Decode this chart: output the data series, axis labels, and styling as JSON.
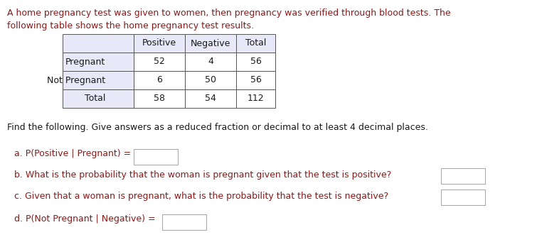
{
  "description_line1": "A home pregnancy test was given to women, then pregnancy was verified through blood tests. The",
  "description_line2": "following table shows the home pregnancy test results.",
  "table_headers": [
    "",
    "Positive",
    "Negative",
    "Total"
  ],
  "table_rows": [
    [
      "Pregnant",
      "52",
      "4",
      "56"
    ],
    [
      "Not Pregnant",
      "6",
      "50",
      "56"
    ],
    [
      "Total",
      "58",
      "54",
      "112"
    ]
  ],
  "find_text": "Find the following. Give answers as a reduced fraction or decimal to at least 4 decimal places.",
  "question_a": "a. P(Positive | Pregnant) =",
  "question_b": "b. What is the probability that the woman is pregnant given that the test is positive?",
  "question_c": "c. Given that a woman is pregnant, what is the probability that the test is negative?",
  "question_d": "d. P(Not Pregnant | Negative) =",
  "red_color": "#8B1A1A",
  "black_color": "#1a1a1a",
  "table_header_bg": "#e8e8f8",
  "table_cell_bg": "#ffffff",
  "table_border_color": "#555555",
  "box_border_color": "#aaaaaa",
  "bg_color": "#ffffff",
  "font_size": 9.0
}
